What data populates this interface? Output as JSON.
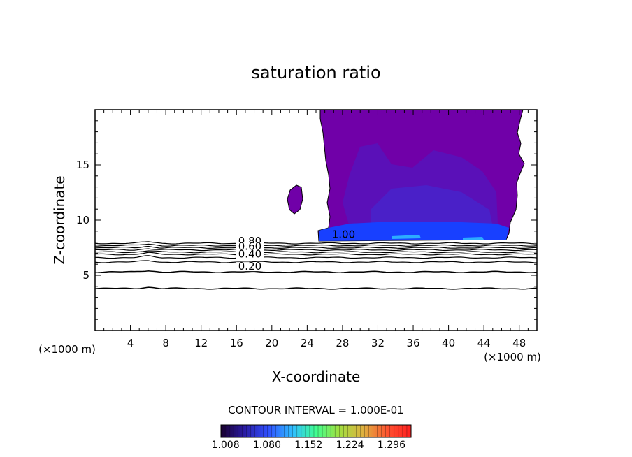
{
  "chart_data": {
    "type": "contour",
    "title": "saturation ratio",
    "xlabel": "X-coordinate",
    "ylabel": "Z-coordinate",
    "x_unit_left": "(×1000 m)",
    "x_unit_right": "(×1000 m)",
    "xlim": [
      0,
      50
    ],
    "ylim": [
      0,
      20
    ],
    "x_ticks": [
      4,
      8,
      12,
      16,
      20,
      24,
      28,
      32,
      36,
      40,
      44,
      48
    ],
    "y_ticks": [
      5,
      10,
      15
    ],
    "contour_interval_text": "CONTOUR INTERVAL = 1.000E-01",
    "colorbar": {
      "tick_labels": [
        "1.008",
        "1.080",
        "1.152",
        "1.224",
        "1.296"
      ],
      "range": [
        1.0,
        1.33
      ],
      "colors": [
        "#1a0030",
        "#2a1aa0",
        "#3050ff",
        "#30c0ff",
        "#40ff90",
        "#a0e040",
        "#e0b040",
        "#ff5030",
        "#ff2020"
      ]
    },
    "contour_labels": [
      {
        "text": "0.80",
        "x": 16.2,
        "z": 7.8
      },
      {
        "text": "0.60",
        "x": 16.2,
        "z": 7.3
      },
      {
        "text": "0.40",
        "x": 16.2,
        "z": 6.6
      },
      {
        "text": "0.20",
        "x": 16.2,
        "z": 5.5
      },
      {
        "text": "1.00",
        "x": 26.8,
        "z": 8.4
      }
    ],
    "subsaturated_contours_z": [
      7.9,
      7.7,
      7.5,
      7.3,
      7.1,
      6.9,
      6.6,
      6.2,
      5.3,
      3.8
    ],
    "supersaturated_region": {
      "x_range": [
        25.3,
        47.0
      ],
      "z_range": [
        8.3,
        20.0
      ],
      "fill_color": "#7000a8",
      "inner_color": "#5a10b8",
      "base_color": "#1840ff"
    },
    "isolated_blob": {
      "x": 22.8,
      "z": 11.8
    }
  }
}
